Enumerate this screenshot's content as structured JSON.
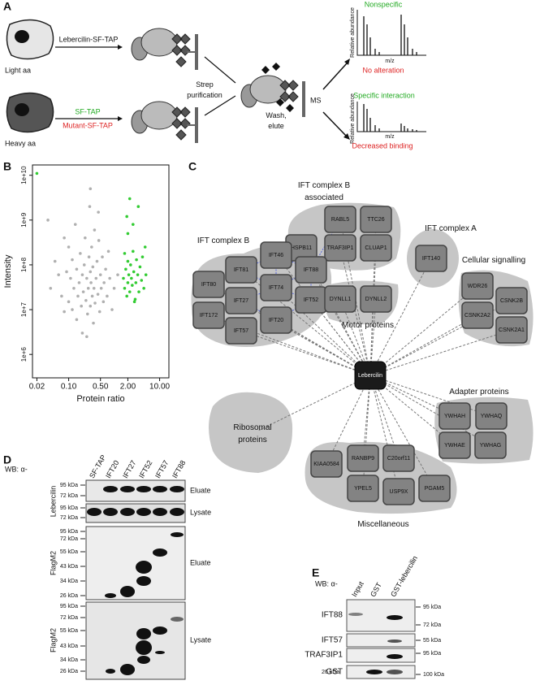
{
  "panel_labels": [
    "A",
    "B",
    "C",
    "D",
    "E"
  ],
  "panel_a": {
    "light": "Light aa",
    "heavy": "Heavy aa",
    "bait": "Lebercilin-SF-TAP",
    "control": "SF-TAP",
    "mutant": "Mutant-SF-TAP",
    "purification": [
      "Strep",
      "purification"
    ],
    "wash": [
      "Wash,",
      "elute"
    ],
    "ms": "MS",
    "spectra": [
      {
        "header": "Nonspecific",
        "y_label": "Relative abundance",
        "x_label": "m/z",
        "footer": "No alteration"
      },
      {
        "header": "Specific interaction",
        "y_label": "Relative abundance",
        "x_label": "m/z",
        "footer": "Decreased binding"
      }
    ]
  },
  "chart_data": {
    "type": "scatter",
    "x_label": "Protein ratio",
    "y_label": "Intensity",
    "log_x": true,
    "log_y": true,
    "xlim": [
      0.016,
      16
    ],
    "ylim": [
      300000,
      17000000000
    ],
    "xticks": [
      0.02,
      {
        "value": 0.1,
        "label": "0.10"
      },
      {
        "value": 0.5,
        "label": "0.50"
      },
      {
        "value": 2,
        "label": "2.00"
      },
      {
        "value": 10,
        "label": "10.00"
      }
    ],
    "yticks": [
      {
        "value": 1000000,
        "label": "1e+6"
      },
      {
        "value": 10000000,
        "label": "1e+7"
      },
      {
        "value": 100000000,
        "label": "1e+8"
      },
      {
        "value": 1000000000,
        "label": "1e+9"
      },
      {
        "value": 10000000000,
        "label": "1e+10"
      }
    ],
    "series": [
      {
        "color": "#b0b0b0",
        "x": [
          0.04,
          0.05,
          0.06,
          0.07,
          0.08,
          0.08,
          0.09,
          0.1,
          0.1,
          0.11,
          0.12,
          0.12,
          0.13,
          0.14,
          0.15,
          0.15,
          0.16,
          0.17,
          0.18,
          0.19,
          0.2,
          0.2,
          0.21,
          0.22,
          0.23,
          0.24,
          0.25,
          0.26,
          0.27,
          0.28,
          0.29,
          0.3,
          0.3,
          0.31,
          0.32,
          0.33,
          0.34,
          0.35,
          0.36,
          0.37,
          0.38,
          0.4,
          0.42,
          0.44,
          0.46,
          0.48,
          0.5,
          0.52,
          0.55,
          0.58,
          0.6,
          0.65,
          0.7,
          0.75,
          0.8,
          0.9,
          1.0,
          0.035,
          0.3,
          0.25,
          1.2,
          0.45
        ],
        "values": [
          30000000.0,
          120000000.0,
          60000000.0,
          20000000.0,
          400000000.0,
          9000000.0,
          70000000.0,
          15000000.0,
          250000000.0,
          50000000.0,
          10000000.0,
          130000000.0,
          30000000.0,
          800000000.0,
          6000000.0,
          80000000.0,
          20000000.0,
          40000000.0,
          180000000.0,
          12000000.0,
          60000000.0,
          3000000.0,
          25000000.0,
          100000000.0,
          400000000.0,
          16000000.0,
          50000000.0,
          8000000.0,
          30000000.0,
          150000000.0,
          2000000000.0,
          70000000.0,
          12000000.0,
          40000000.0,
          250000000.0,
          20000000.0,
          90000000.0,
          5000000.0,
          30000000.0,
          600000000.0,
          14000000.0,
          50000000.0,
          120000000.0,
          22000000.0,
          350000000.0,
          9000000.0,
          60000000.0,
          30000000.0,
          150000000.0,
          15000000.0,
          40000000.0,
          80000000.0,
          20000000.0,
          200000000.0,
          50000000.0,
          10000000.0,
          30000000.0,
          1000000000.0,
          5000000000.0,
          2500000.0,
          60000000.0,
          1500000000.0
        ]
      },
      {
        "color": "#33cc33",
        "x": [
          0.02,
          1.6,
          1.7,
          1.8,
          1.9,
          2.0,
          2.0,
          2.1,
          2.2,
          2.3,
          2.4,
          2.5,
          2.6,
          2.7,
          2.8,
          3.0,
          3.1,
          3.3,
          3.5,
          3.7,
          4.0,
          4.2,
          4.5,
          5.0,
          1.9,
          2.2,
          2.6,
          3.4,
          2.0,
          4.8,
          1.7,
          2.9
        ],
        "values": [
          11000000000.0,
          50000000.0,
          30000000.0,
          80000000.0,
          20000000.0,
          120000000.0,
          40000000.0,
          60000000.0,
          25000000.0,
          100000000.0,
          50000000.0,
          35000000.0,
          200000000.0,
          70000000.0,
          15000000.0,
          40000000.0,
          130000000.0,
          60000000.0,
          25000000.0,
          90000000.0,
          45000000.0,
          150000000.0,
          30000000.0,
          60000000.0,
          1200000000.0,
          3000000000.0,
          800000000.0,
          2000000000.0,
          500000000.0,
          250000000.0,
          180000000.0,
          17000000.0
        ]
      }
    ]
  },
  "network": {
    "hub": "Lebercilin",
    "groups": [
      {
        "label": [
          "IFT complex B",
          "associated"
        ]
      },
      {
        "label": [
          "IFT complex A"
        ]
      },
      {
        "label": [
          "IFT complex B"
        ]
      },
      {
        "label": [
          "Cellular signalling"
        ]
      },
      {
        "label": [
          "Motor proteins"
        ]
      },
      {
        "label": [
          "Adapter proteins"
        ]
      },
      {
        "label": [
          "Ribosomal",
          "proteins"
        ]
      },
      {
        "label": [
          "Miscellaneous"
        ]
      }
    ],
    "nodes": [
      "HSPB11",
      "RABL5",
      "TTC26",
      "TRAF3IP1",
      "CLUAP1",
      "IFT140",
      "IFT80",
      "IFT81",
      "IFT46",
      "IFT88",
      "IFT74",
      "IFT27",
      "IFT52",
      "IFT172",
      "IFT20",
      "IFT57",
      "DYNLL1",
      "DYNLL2",
      "WDR26",
      "CSNK2B",
      "CSNK2A2",
      "CSNK2A1",
      "YWHAH",
      "YWHAQ",
      "YWHAE",
      "YWHAG",
      "KIAA0584",
      "RANBP9",
      "C20orf11",
      "YPEL5",
      "USP9X",
      "PGAM5"
    ]
  },
  "panel_d": {
    "wb": "WB: α-",
    "lanes": [
      "SF-TAP",
      "IFT20",
      "IFT27",
      "IFT52",
      "IFT57",
      "IFT88"
    ],
    "rows": [
      {
        "antibody": "Lebercilin",
        "blocks": [
          {
            "fraction": "Eluate",
            "markers": [
              "95 kDa",
              "72 kDa"
            ]
          },
          {
            "fraction": "Lysate",
            "markers": [
              "95 kDa",
              "72 kDa"
            ]
          }
        ]
      },
      {
        "antibody": "FlagM2",
        "blocks": [
          {
            "fraction": "Eluate",
            "markers": [
              "95 kDa",
              "72 kDa",
              "55 kDa",
              "43 kDa",
              "34 kDa",
              "26 kDa"
            ]
          }
        ]
      },
      {
        "antibody": "FlagM2",
        "blocks": [
          {
            "fraction": "Lysate",
            "markers": [
              "95 kDa",
              "72 kDa",
              "55 kDa",
              "43 kDa",
              "34 kDa",
              "26 kDa"
            ]
          }
        ]
      }
    ]
  },
  "panel_e": {
    "wb": "WB: α-",
    "lanes": [
      "Input",
      "GST",
      "GST-lebercilin"
    ],
    "rows": [
      {
        "antibody": "IFT88",
        "markers": [
          "95 kDa",
          "72 kDa"
        ]
      },
      {
        "antibody": "IFT57",
        "markers": [
          "55 kDa"
        ]
      },
      {
        "antibody": "TRAF3IP1",
        "markers": [
          "95 kDa"
        ]
      },
      {
        "antibody": "GST",
        "left_marker": "26 kDa",
        "markers": [
          "100 kDa"
        ]
      }
    ]
  }
}
